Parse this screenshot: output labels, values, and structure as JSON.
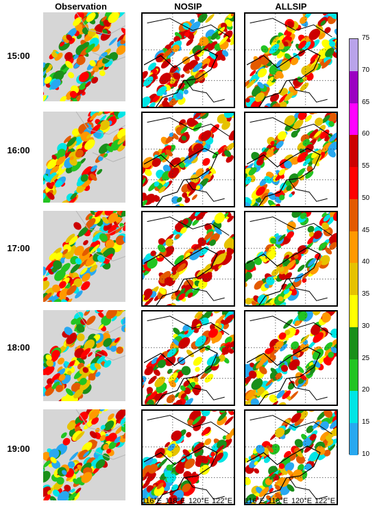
{
  "columns": [
    "Observation",
    "NOSIP",
    "ALLSIP"
  ],
  "times": [
    "15:00",
    "16:00",
    "17:00",
    "18:00",
    "19:00"
  ],
  "lon_labels": [
    "116°E",
    "118°E",
    "120°E",
    "122°E"
  ],
  "colorbar": {
    "ticks": [
      "75",
      "70",
      "65",
      "60",
      "55",
      "50",
      "45",
      "40",
      "35",
      "30",
      "25",
      "20",
      "15",
      "10"
    ],
    "colors": [
      "#b9a3ea",
      "#9b00c2",
      "#ff00ff",
      "#cc0000",
      "#ff0000",
      "#e35a00",
      "#ff9900",
      "#e6c200",
      "#ffff00",
      "#1a8f1a",
      "#22c422",
      "#00e5e5",
      "#28a8f0"
    ]
  }
}
